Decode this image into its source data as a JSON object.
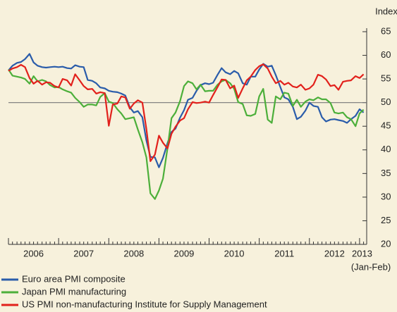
{
  "chart_data": {
    "type": "line",
    "y_axis_label": "Index",
    "x_note": "(Jan-Feb)",
    "x": [
      2006,
      2006.08,
      2006.17,
      2006.25,
      2006.33,
      2006.42,
      2006.5,
      2006.58,
      2006.67,
      2006.75,
      2006.83,
      2006.92,
      2007,
      2007.08,
      2007.17,
      2007.25,
      2007.33,
      2007.42,
      2007.5,
      2007.58,
      2007.67,
      2007.75,
      2007.83,
      2007.92,
      2008,
      2008.08,
      2008.17,
      2008.25,
      2008.33,
      2008.42,
      2008.5,
      2008.58,
      2008.67,
      2008.75,
      2008.83,
      2008.92,
      2009,
      2009.08,
      2009.17,
      2009.25,
      2009.33,
      2009.42,
      2009.5,
      2009.58,
      2009.67,
      2009.75,
      2009.83,
      2009.92,
      2010,
      2010.08,
      2010.17,
      2010.25,
      2010.33,
      2010.42,
      2010.5,
      2010.58,
      2010.67,
      2010.75,
      2010.83,
      2010.92,
      2011,
      2011.08,
      2011.17,
      2011.25,
      2011.33,
      2011.42,
      2011.5,
      2011.58,
      2011.67,
      2011.75,
      2011.83,
      2011.92,
      2012,
      2012.08,
      2012.17,
      2012.25,
      2012.33,
      2012.42,
      2012.5,
      2012.58,
      2012.67,
      2012.75,
      2012.83,
      2012.92,
      2013,
      2013.08
    ],
    "xlim": [
      2006,
      2013.17
    ],
    "xticks": [
      {
        "value": 2006.5,
        "label": "2006"
      },
      {
        "value": 2007.5,
        "label": "2007"
      },
      {
        "value": 2008.5,
        "label": "2008"
      },
      {
        "value": 2009.5,
        "label": "2009"
      },
      {
        "value": 2010.5,
        "label": "2010"
      },
      {
        "value": 2011.5,
        "label": "2011"
      },
      {
        "value": 2012.5,
        "label": "2012"
      },
      {
        "value": 2013.05,
        "label": "2013"
      }
    ],
    "ylim": [
      20,
      65
    ],
    "yticks": [
      20,
      25,
      30,
      35,
      40,
      45,
      50,
      55,
      60,
      65
    ],
    "reference_line": 50,
    "series": [
      {
        "name": "Euro area PMI composite",
        "color": "#2a5caa",
        "values": [
          56.8,
          57.8,
          58.4,
          58.6,
          59.2,
          60.3,
          58.5,
          57.8,
          57.5,
          57.4,
          57.5,
          57.6,
          57.5,
          57.6,
          57.3,
          57.2,
          57.9,
          57.6,
          57.5,
          54.8,
          54.6,
          54.1,
          53.2,
          53.0,
          52.5,
          52.3,
          52.2,
          51.9,
          51.5,
          49.0,
          47.9,
          48.2,
          46.9,
          42.0,
          38.5,
          38.4,
          36.3,
          38.3,
          41.4,
          43.8,
          44.5,
          46.8,
          48.4,
          50.6,
          51.0,
          52.5,
          53.7,
          54.1,
          53.9,
          54.2,
          55.9,
          57.3,
          56.4,
          56.0,
          56.7,
          56.2,
          54.1,
          53.8,
          55.5,
          55.5,
          57.0,
          58.2,
          57.6,
          57.8,
          55.8,
          53.3,
          51.1,
          50.7,
          49.1,
          46.5,
          47.0,
          48.3,
          50.0,
          49.3,
          49.1,
          46.9,
          46.0,
          46.4,
          46.5,
          46.3,
          46.1,
          45.7,
          46.5,
          47.2,
          48.6,
          47.9
        ]
      },
      {
        "name": "Japan PMI manufacturing",
        "color": "#4caf3a",
        "values": [
          57.0,
          55.7,
          55.5,
          55.3,
          55.0,
          54.0,
          55.6,
          54.5,
          54.8,
          54.5,
          53.7,
          53.2,
          53.3,
          52.8,
          52.4,
          52.1,
          51.0,
          50.1,
          49.1,
          49.6,
          49.6,
          49.4,
          51.2,
          52.0,
          50.2,
          49.9,
          48.6,
          47.7,
          46.5,
          46.7,
          46.9,
          44.3,
          41.6,
          38.4,
          30.8,
          29.6,
          31.4,
          33.9,
          40.3,
          46.7,
          47.9,
          50.3,
          53.5,
          54.5,
          54.1,
          52.8,
          53.8,
          52.4,
          52.5,
          52.5,
          53.8,
          54.5,
          54.8,
          54.1,
          52.9,
          50.1,
          49.7,
          47.3,
          47.2,
          47.6,
          51.3,
          52.9,
          46.4,
          45.7,
          51.3,
          50.7,
          52.1,
          51.9,
          49.3,
          50.6,
          49.1,
          50.2,
          50.7,
          50.5,
          51.1,
          50.7,
          50.7,
          49.9,
          47.9,
          47.7,
          47.9,
          46.9,
          46.5,
          45.0,
          47.7,
          48.5
        ]
      },
      {
        "name": "US PMI non-manufacturing Institute for Supply Management",
        "color": "#e2211c",
        "values": [
          56.7,
          57.2,
          57.5,
          58.0,
          57.5,
          55.2,
          54.0,
          54.6,
          53.8,
          54.3,
          54.2,
          53.5,
          53.2,
          55.0,
          54.7,
          53.6,
          56.0,
          54.7,
          53.5,
          52.8,
          52.9,
          51.9,
          52.2,
          52.0,
          45.1,
          49.6,
          49.8,
          51.3,
          51.1,
          48.7,
          49.8,
          50.5,
          50.0,
          44.4,
          37.6,
          39.0,
          43.0,
          41.5,
          40.3,
          43.4,
          44.9,
          46.2,
          46.7,
          48.6,
          50.1,
          49.9,
          50.0,
          50.2,
          50.0,
          51.6,
          53.3,
          54.9,
          54.8,
          53.0,
          53.6,
          51.0,
          53.0,
          54.7,
          55.5,
          56.9,
          57.7,
          58.1,
          57.2,
          55.5,
          54.1,
          54.6,
          53.8,
          54.2,
          53.4,
          53.2,
          53.8,
          52.7,
          53.0,
          53.8,
          55.9,
          55.6,
          54.9,
          53.5,
          53.7,
          52.7,
          54.4,
          54.6,
          54.7,
          55.6,
          55.2,
          56.0
        ]
      }
    ]
  }
}
